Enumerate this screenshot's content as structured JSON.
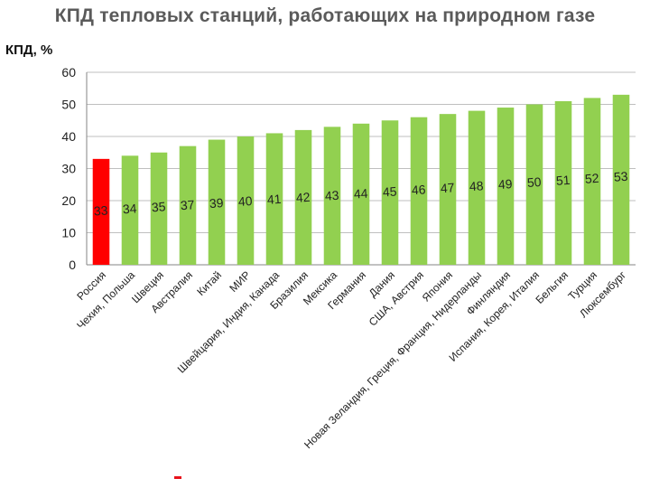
{
  "page": {
    "title": "КПД тепловых станций, работающих на природном газе",
    "y_unit_label": "КПД, %"
  },
  "colors": {
    "highlight": "#ff0000",
    "bar": "#92d050",
    "grid": "#bfbfbf",
    "axis_text": "#222222"
  },
  "chart_data": {
    "type": "bar",
    "title": "КПД тепловых станций, работающих на природном газе",
    "ylabel": "КПД, %",
    "xlabel": "",
    "ylim": [
      0,
      60
    ],
    "yticks": [
      0,
      10,
      20,
      30,
      40,
      50,
      60
    ],
    "grid": true,
    "categories": [
      "Россия",
      "Чехия, Польша",
      "Швеция",
      "Австралия",
      "Китай",
      "МИР",
      "Швейцария, Индия, Канада",
      "Бразилия",
      "Мексика",
      "Германия",
      "Дания",
      "США, Австрия",
      "Япония",
      "Новая Зеландия, Греция, Франция, Нидерланды",
      "Финляндия",
      "Испания, Корея, Италия",
      "Бельгия",
      "Турция",
      "Люксембург"
    ],
    "values": [
      33,
      34,
      35,
      37,
      39,
      40,
      41,
      42,
      43,
      44,
      45,
      46,
      47,
      48,
      49,
      50,
      51,
      52,
      53
    ],
    "highlight_index": 0
  }
}
